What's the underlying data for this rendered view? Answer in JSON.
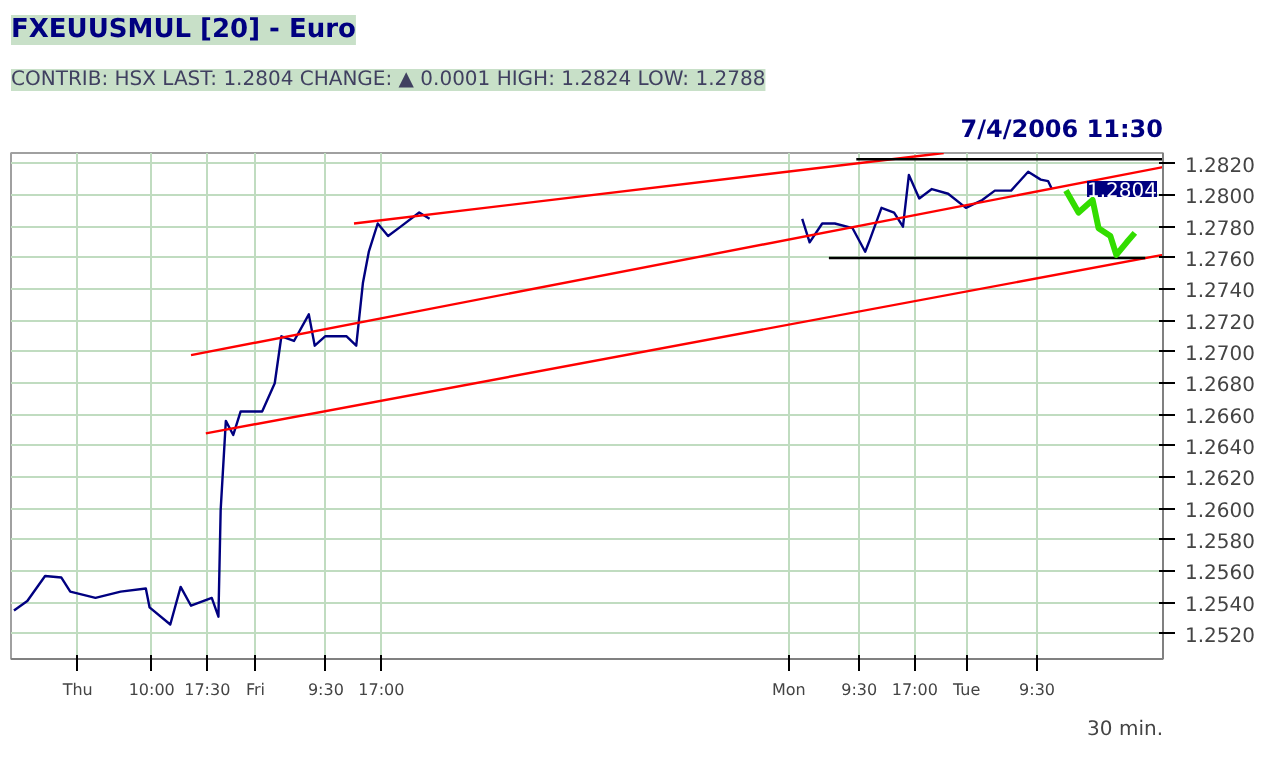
{
  "chart_data": {
    "type": "line",
    "title": "FXEUUSMUL [20] - Euro",
    "subtitle": "CONTRIB: HSX LAST: 1.2804 CHANGE: ▲ 0.0001 HIGH: 1.2824 LOW: 1.2788",
    "annotations": [
      "7/4/2006 11:30",
      "30 min.",
      "1.2804"
    ],
    "series": [
      {
        "color": "#000080",
        "x": [
          "2006-06-28T15:24",
          "2006-06-28T17:12",
          "2006-06-28T19:36",
          "2006-06-28T21:48",
          "2006-06-28T23:00",
          "2006-06-29T02:24",
          "2006-06-29T05:48",
          "2006-06-29T09:12",
          "2006-06-29T09:42",
          "2006-06-29T12:30",
          "2006-06-29T13:54",
          "2006-06-29T15:18",
          "2006-06-29T18:06",
          "2006-06-29T19:00",
          "2006-06-29T19:18",
          "2006-06-29T20:00",
          "2006-06-29T21:00",
          "2006-06-29T22:00",
          "2006-06-30T00:54",
          "2006-06-30T02:36",
          "2006-06-30T03:30",
          "2006-06-30T05:12",
          "2006-06-30T07:12",
          "2006-06-30T08:00",
          "2006-06-30T09:24",
          "2006-06-30T12:18",
          "2006-06-30T13:36",
          "2006-06-30T14:30",
          "2006-06-30T15:18",
          "2006-06-30T16:30",
          "2006-06-30T17:54",
          "2006-06-30T19:36",
          "2006-06-30T22:06",
          "2006-06-30T23:30",
          "2006-07-02T00:00",
          "2006-07-03T01:48",
          "2006-07-03T02:48",
          "2006-07-03T04:30",
          "2006-07-03T06:12",
          "2006-07-03T08:36",
          "2006-07-03T10:18",
          "2006-07-03T10:48",
          "2006-07-03T12:30",
          "2006-07-03T14:12",
          "2006-07-03T15:24",
          "2006-07-03T16:12",
          "2006-07-03T17:36",
          "2006-07-03T19:18",
          "2006-07-03T21:30",
          "2006-07-03T23:54",
          "2006-07-04T02:06",
          "2006-07-04T03:48",
          "2006-07-04T06:00",
          "2006-07-04T08:18",
          "2006-07-04T10:00",
          "2006-07-04T11:00",
          "2006-07-04T11:30"
        ],
        "values": [
          1.2535,
          1.2541,
          1.2557,
          1.2556,
          1.2547,
          1.2543,
          1.2547,
          1.2549,
          1.2537,
          1.2526,
          1.255,
          1.2538,
          1.2543,
          1.2531,
          1.2599,
          1.2656,
          1.2647,
          1.2662,
          1.2662,
          1.268,
          1.271,
          1.2707,
          1.2724,
          1.2704,
          1.271,
          1.271,
          1.2704,
          1.2744,
          1.2764,
          1.2782,
          1.2774,
          1.278,
          1.2789,
          1.2785,
          null,
          1.2785,
          1.277,
          1.2782,
          1.2782,
          1.2779,
          1.2764,
          1.277,
          1.2792,
          1.2789,
          1.278,
          1.2813,
          1.2798,
          1.2804,
          1.2801,
          1.2792,
          1.2797,
          1.2803,
          1.2803,
          1.2815,
          1.281,
          1.2809,
          1.2804
        ]
      },
      {
        "color": "#ff0000",
        "x": [
          "2006-06-30T13:18",
          "2006-07-03T20:54"
        ],
        "values": [
          1.2782,
          1.2827
        ]
      },
      {
        "color": "#ff0000",
        "x": [
          "2006-06-29T15:18",
          "2006-07-05T02:30"
        ],
        "values": [
          1.2698,
          1.2818
        ]
      },
      {
        "color": "#ff0000",
        "x": [
          "2006-06-29T17:18",
          "2006-07-05T02:30"
        ],
        "values": [
          1.2648,
          1.2762
        ]
      },
      {
        "color": "#000000",
        "x": [
          "2006-07-03T09:06",
          "2006-07-05T02:30"
        ],
        "values": [
          1.2823,
          1.2823
        ]
      },
      {
        "color": "#000000",
        "x": [
          "2006-07-03T05:24",
          "2006-07-05T00:06"
        ],
        "values": [
          1.276,
          1.276
        ]
      },
      {
        "color": "#33dd00",
        "x": [
          "2006-07-04T13:24",
          "2006-07-04T15:06",
          "2006-07-04T17:00",
          "2006-07-04T17:48",
          "2006-07-04T19:24",
          "2006-07-04T20:12",
          "2006-07-04T21:36",
          "2006-07-04T22:42"
        ],
        "values": [
          1.2803,
          1.2789,
          1.2797,
          1.2779,
          1.2774,
          1.2762,
          1.277,
          1.2776
        ]
      }
    ],
    "xlim": [
      "2006-06-28T15:00",
      "2006-07-05T02:30"
    ],
    "xticks": [
      {
        "value": "2006-06-29T00:00",
        "label": "Thu"
      },
      {
        "value": "2006-06-29T10:00",
        "label": "10:00"
      },
      {
        "value": "2006-06-29T17:30",
        "label": "17:30"
      },
      {
        "value": "2006-06-30T00:00",
        "label": "Fri"
      },
      {
        "value": "2006-06-30T09:30",
        "label": "9:30"
      },
      {
        "value": "2006-06-30T17:00",
        "label": "17:00"
      },
      {
        "value": "2006-07-03T00:00",
        "label": "Mon"
      },
      {
        "value": "2006-07-03T09:30",
        "label": "9:30"
      },
      {
        "value": "2006-07-03T17:00",
        "label": "17:00"
      },
      {
        "value": "2006-07-04T00:00",
        "label": "Tue"
      },
      {
        "value": "2006-07-04T09:30",
        "label": "9:30"
      }
    ],
    "ylim": [
      1.2504,
      1.2827
    ],
    "yticks": [
      {
        "value": 1.252,
        "label": "1.2520"
      },
      {
        "value": 1.254,
        "label": "1.2540"
      },
      {
        "value": 1.256,
        "label": "1.2560"
      },
      {
        "value": 1.258,
        "label": "1.2580"
      },
      {
        "value": 1.26,
        "label": "1.2600"
      },
      {
        "value": 1.262,
        "label": "1.2620"
      },
      {
        "value": 1.264,
        "label": "1.2640"
      },
      {
        "value": 1.266,
        "label": "1.2660"
      },
      {
        "value": 1.268,
        "label": "1.2680"
      },
      {
        "value": 1.27,
        "label": "1.2700"
      },
      {
        "value": 1.272,
        "label": "1.2720"
      },
      {
        "value": 1.274,
        "label": "1.2740"
      },
      {
        "value": 1.276,
        "label": "1.2760"
      },
      {
        "value": 1.278,
        "label": "1.2780"
      },
      {
        "value": 1.28,
        "label": "1.2800"
      },
      {
        "value": 1.282,
        "label": "1.2820"
      }
    ],
    "grid": true,
    "line_style": "solid"
  }
}
